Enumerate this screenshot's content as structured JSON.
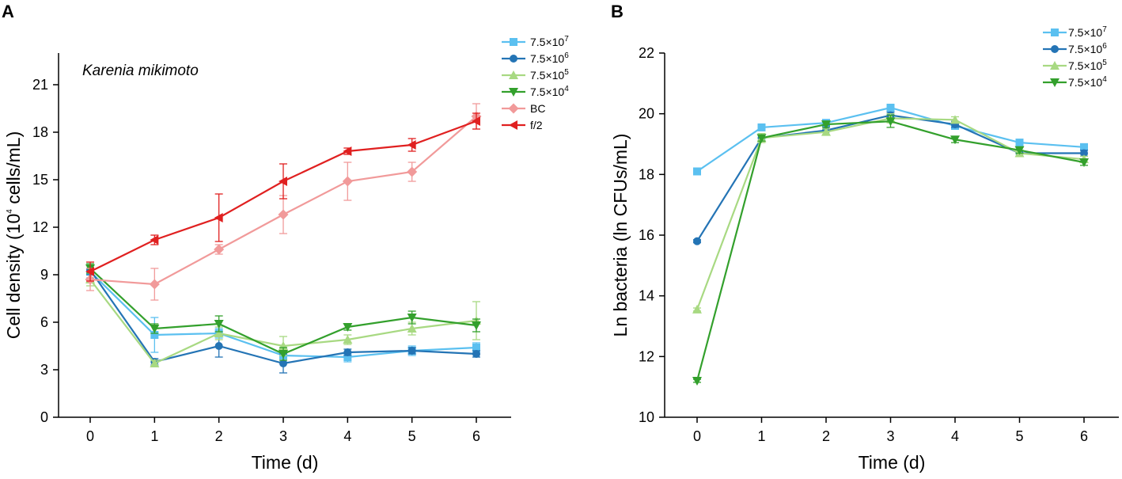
{
  "chart_data": [
    {
      "panel": "A",
      "type": "line",
      "annotation": "Karenia mikimoto",
      "xlabel": "Time (d)",
      "ylabel_parts": [
        "Cell density (10",
        "4",
        " cells/mL)"
      ],
      "x": [
        0,
        1,
        2,
        3,
        4,
        5,
        6
      ],
      "xlim": [
        -0.5,
        6.5
      ],
      "ylim": [
        0,
        23
      ],
      "yticks": [
        0,
        3,
        6,
        9,
        12,
        15,
        18,
        21
      ],
      "xticks": [
        0,
        1,
        2,
        3,
        4,
        5,
        6
      ],
      "series": [
        {
          "base": "7.5×10",
          "exp": "7",
          "color": "#5bc0f0",
          "marker": "square",
          "values": [
            9.2,
            5.2,
            5.3,
            3.9,
            3.8,
            4.2,
            4.4
          ],
          "err": [
            0.4,
            1.1,
            0.3,
            0.4,
            0.3,
            0.3,
            0.3
          ]
        },
        {
          "base": "7.5×10",
          "exp": "6",
          "color": "#2474b5",
          "marker": "circle",
          "values": [
            9.3,
            3.5,
            4.5,
            3.4,
            4.1,
            4.2,
            4.0
          ],
          "err": [
            0.3,
            0.2,
            0.7,
            0.6,
            0.2,
            0.2,
            0.2
          ]
        },
        {
          "base": "7.5×10",
          "exp": "5",
          "color": "#a8d982",
          "marker": "triangle-up",
          "values": [
            8.7,
            3.4,
            5.3,
            4.5,
            4.9,
            5.6,
            6.1
          ],
          "err": [
            0.4,
            0.2,
            0.4,
            0.6,
            0.3,
            0.4,
            1.2
          ]
        },
        {
          "base": "7.5×10",
          "exp": "4",
          "color": "#33a02c",
          "marker": "triangle-down",
          "values": [
            9.4,
            5.6,
            5.9,
            4.0,
            5.7,
            6.3,
            5.8
          ],
          "err": [
            0.3,
            0.3,
            0.5,
            0.4,
            0.2,
            0.4,
            0.4
          ]
        },
        {
          "base": "BC",
          "exp": "",
          "color": "#f19a9a",
          "marker": "diamond",
          "values": [
            8.7,
            8.4,
            10.6,
            12.8,
            14.9,
            15.5,
            19.0
          ],
          "err": [
            0.7,
            1.0,
            0.3,
            1.2,
            1.2,
            0.6,
            0.8
          ]
        },
        {
          "base": "f/2",
          "exp": "",
          "color": "#e02020",
          "marker": "triangle-left",
          "values": [
            9.2,
            11.2,
            12.6,
            14.9,
            16.8,
            17.2,
            18.7
          ],
          "err": [
            0.6,
            0.3,
            1.5,
            1.1,
            0.2,
            0.4,
            0.5
          ]
        }
      ]
    },
    {
      "panel": "B",
      "type": "line",
      "xlabel": "Time (d)",
      "ylabel": "Ln bacteria (ln CFUs/mL)",
      "x": [
        0,
        1,
        2,
        3,
        4,
        5,
        6
      ],
      "xlim": [
        -0.5,
        6.5
      ],
      "ylim": [
        10,
        22
      ],
      "yticks": [
        10,
        12,
        14,
        16,
        18,
        20,
        22
      ],
      "xticks": [
        0,
        1,
        2,
        3,
        4,
        5,
        6
      ],
      "series": [
        {
          "base": "7.5×10",
          "exp": "7",
          "color": "#5bc0f0",
          "marker": "square",
          "values": [
            18.1,
            19.55,
            19.7,
            20.2,
            19.6,
            19.05,
            18.9
          ],
          "err": [
            0.05,
            0.1,
            0.1,
            0.1,
            0.1,
            0.1,
            0.1
          ]
        },
        {
          "base": "7.5×10",
          "exp": "6",
          "color": "#2474b5",
          "marker": "circle",
          "values": [
            15.8,
            19.2,
            19.45,
            19.95,
            19.65,
            18.7,
            18.7
          ],
          "err": [
            0.05,
            0.1,
            0.15,
            0.1,
            0.1,
            0.1,
            0.1
          ]
        },
        {
          "base": "7.5×10",
          "exp": "5",
          "color": "#a8d982",
          "marker": "triangle-up",
          "values": [
            13.55,
            19.2,
            19.4,
            19.85,
            19.8,
            18.7,
            18.5
          ],
          "err": [
            0.05,
            0.15,
            0.1,
            0.15,
            0.1,
            0.1,
            0.1
          ]
        },
        {
          "base": "7.5×10",
          "exp": "4",
          "color": "#33a02c",
          "marker": "triangle-down",
          "values": [
            11.2,
            19.2,
            19.65,
            19.75,
            19.15,
            18.8,
            18.4
          ],
          "err": [
            0.05,
            0.1,
            0.1,
            0.2,
            0.1,
            0.1,
            0.1
          ]
        }
      ]
    }
  ]
}
